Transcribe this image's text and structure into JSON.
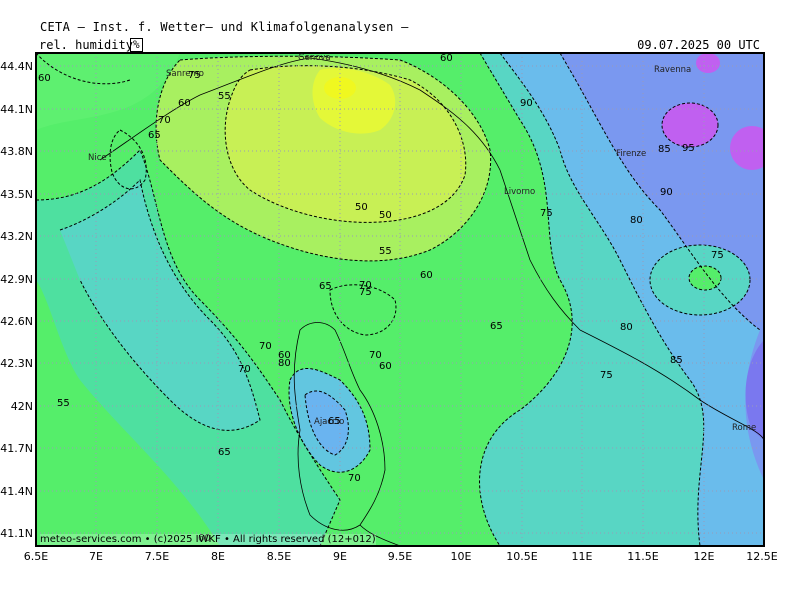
{
  "header": {
    "title": "CETA – Inst. f. Wetter– und Klimafolgenanalysen –",
    "variable": "rel. humidity",
    "unit": "%",
    "datetime": "09.07.2025 00 UTC"
  },
  "footer": {
    "credit": "meteo-services.com • (c)2025 IWKF • All rights reserved (12+012)"
  },
  "axes": {
    "lat_labels": [
      "44.4N",
      "44.1N",
      "43.8N",
      "43.5N",
      "43.2N",
      "42.9N",
      "42.6N",
      "42.3N",
      "42N",
      "41.7N",
      "41.4N",
      "41.1N"
    ],
    "lon_labels": [
      "6.5E",
      "7E",
      "7.5E",
      "8E",
      "8.5E",
      "9E",
      "9.5E",
      "10E",
      "10.5E",
      "11E",
      "11.5E",
      "12E",
      "12.5E"
    ]
  },
  "cities": [
    "Genova",
    "Sanremo",
    "Nice",
    "Livorno",
    "Firenze",
    "Ravenna",
    "Ajaccio",
    "Rome"
  ],
  "contour_labels": [
    "60",
    "75",
    "60",
    "55",
    "60",
    "65",
    "70",
    "85",
    "90",
    "95",
    "90",
    "50",
    "75",
    "80",
    "55",
    "60",
    "75",
    "65",
    "70",
    "75",
    "65",
    "80",
    "70",
    "60",
    "70",
    "70",
    "60",
    "85",
    "75",
    "55",
    "65",
    "70",
    "80",
    "65",
    "60",
    "50"
  ],
  "colors": {
    "rh_50": "#d8f050",
    "rh_55": "#a8f060",
    "rh_60": "#58f060",
    "rh_65": "#48e880",
    "rh_70": "#50dca8",
    "rh_75": "#58d4c8",
    "rh_80": "#6ab4f0",
    "rh_85": "#7a9af0",
    "rh_90": "#8484f0",
    "rh_95": "#c060f0"
  }
}
